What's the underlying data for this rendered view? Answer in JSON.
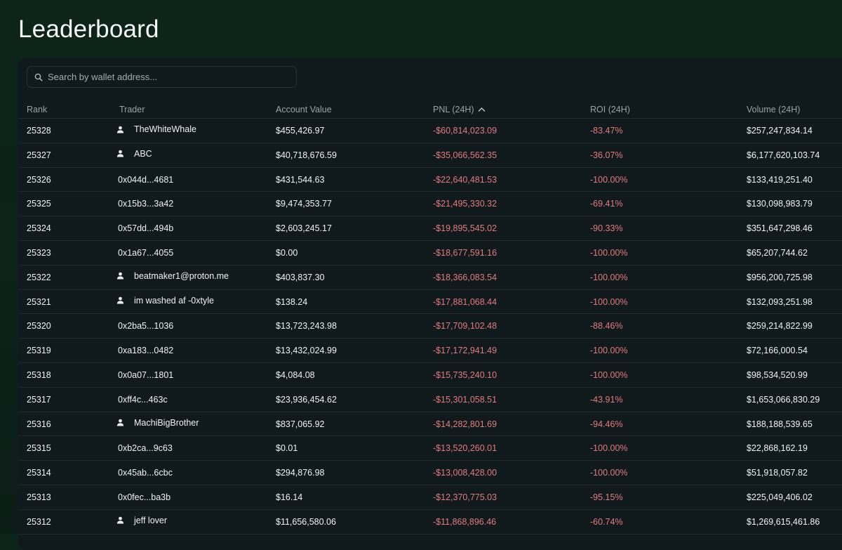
{
  "page": {
    "title": "Leaderboard"
  },
  "search": {
    "placeholder": "Search by wallet address..."
  },
  "columns": {
    "rank": "Rank",
    "trader": "Trader",
    "account_value": "Account Value",
    "pnl": "PNL (24H)",
    "roi": "ROI (24H)",
    "volume": "Volume (24H)"
  },
  "sort": {
    "column": "pnl",
    "direction": "ascending",
    "indicator_icon": "chevron-up-icon"
  },
  "colors": {
    "negative": "#e47b7e",
    "background": "#10191c",
    "page_bg": "#0c2419"
  },
  "rows": [
    {
      "rank": "25328",
      "trader": "TheWhiteWhale",
      "named": true,
      "account_value": "$455,426.97",
      "pnl": "-$60,814,023.09",
      "roi": "-83.47%",
      "volume": "$257,247,834.14"
    },
    {
      "rank": "25327",
      "trader": "ABC",
      "named": true,
      "account_value": "$40,718,676.59",
      "pnl": "-$35,066,562.35",
      "roi": "-36.07%",
      "volume": "$6,177,620,103.74"
    },
    {
      "rank": "25326",
      "trader": "0x044d...4681",
      "named": false,
      "account_value": "$431,544.63",
      "pnl": "-$22,640,481.53",
      "roi": "-100.00%",
      "volume": "$133,419,251.40"
    },
    {
      "rank": "25325",
      "trader": "0x15b3...3a42",
      "named": false,
      "account_value": "$9,474,353.77",
      "pnl": "-$21,495,330.32",
      "roi": "-69.41%",
      "volume": "$130,098,983.79"
    },
    {
      "rank": "25324",
      "trader": "0x57dd...494b",
      "named": false,
      "account_value": "$2,603,245.17",
      "pnl": "-$19,895,545.02",
      "roi": "-90.33%",
      "volume": "$351,647,298.46"
    },
    {
      "rank": "25323",
      "trader": "0x1a67...4055",
      "named": false,
      "account_value": "$0.00",
      "pnl": "-$18,677,591.16",
      "roi": "-100.00%",
      "volume": "$65,207,744.62"
    },
    {
      "rank": "25322",
      "trader": "beatmaker1@proton.me",
      "named": true,
      "account_value": "$403,837.30",
      "pnl": "-$18,366,083.54",
      "roi": "-100.00%",
      "volume": "$956,200,725.98"
    },
    {
      "rank": "25321",
      "trader": "im washed af -0xtyle",
      "named": true,
      "account_value": "$138.24",
      "pnl": "-$17,881,068.44",
      "roi": "-100.00%",
      "volume": "$132,093,251.98"
    },
    {
      "rank": "25320",
      "trader": "0x2ba5...1036",
      "named": false,
      "account_value": "$13,723,243.98",
      "pnl": "-$17,709,102.48",
      "roi": "-88.46%",
      "volume": "$259,214,822.99"
    },
    {
      "rank": "25319",
      "trader": "0xa183...0482",
      "named": false,
      "account_value": "$13,432,024.99",
      "pnl": "-$17,172,941.49",
      "roi": "-100.00%",
      "volume": "$72,166,000.54"
    },
    {
      "rank": "25318",
      "trader": "0x0a07...1801",
      "named": false,
      "account_value": "$4,084.08",
      "pnl": "-$15,735,240.10",
      "roi": "-100.00%",
      "volume": "$98,534,520.99"
    },
    {
      "rank": "25317",
      "trader": "0xff4c...463c",
      "named": false,
      "account_value": "$23,936,454.62",
      "pnl": "-$15,301,058.51",
      "roi": "-43.91%",
      "volume": "$1,653,066,830.29"
    },
    {
      "rank": "25316",
      "trader": "MachiBigBrother",
      "named": true,
      "account_value": "$837,065.92",
      "pnl": "-$14,282,801.69",
      "roi": "-94.46%",
      "volume": "$188,188,539.65"
    },
    {
      "rank": "25315",
      "trader": "0xb2ca...9c63",
      "named": false,
      "account_value": "$0.01",
      "pnl": "-$13,520,260.01",
      "roi": "-100.00%",
      "volume": "$22,868,162.19"
    },
    {
      "rank": "25314",
      "trader": "0x45ab...6cbc",
      "named": false,
      "account_value": "$294,876.98",
      "pnl": "-$13,008,428.00",
      "roi": "-100.00%",
      "volume": "$51,918,057.82"
    },
    {
      "rank": "25313",
      "trader": "0x0fec...ba3b",
      "named": false,
      "account_value": "$16.14",
      "pnl": "-$12,370,775.03",
      "roi": "-95.15%",
      "volume": "$225,049,406.02"
    },
    {
      "rank": "25312",
      "trader": "jeff lover",
      "named": true,
      "account_value": "$11,656,580.06",
      "pnl": "-$11,868,896.46",
      "roi": "-60.74%",
      "volume": "$1,269,615,461.86"
    }
  ]
}
